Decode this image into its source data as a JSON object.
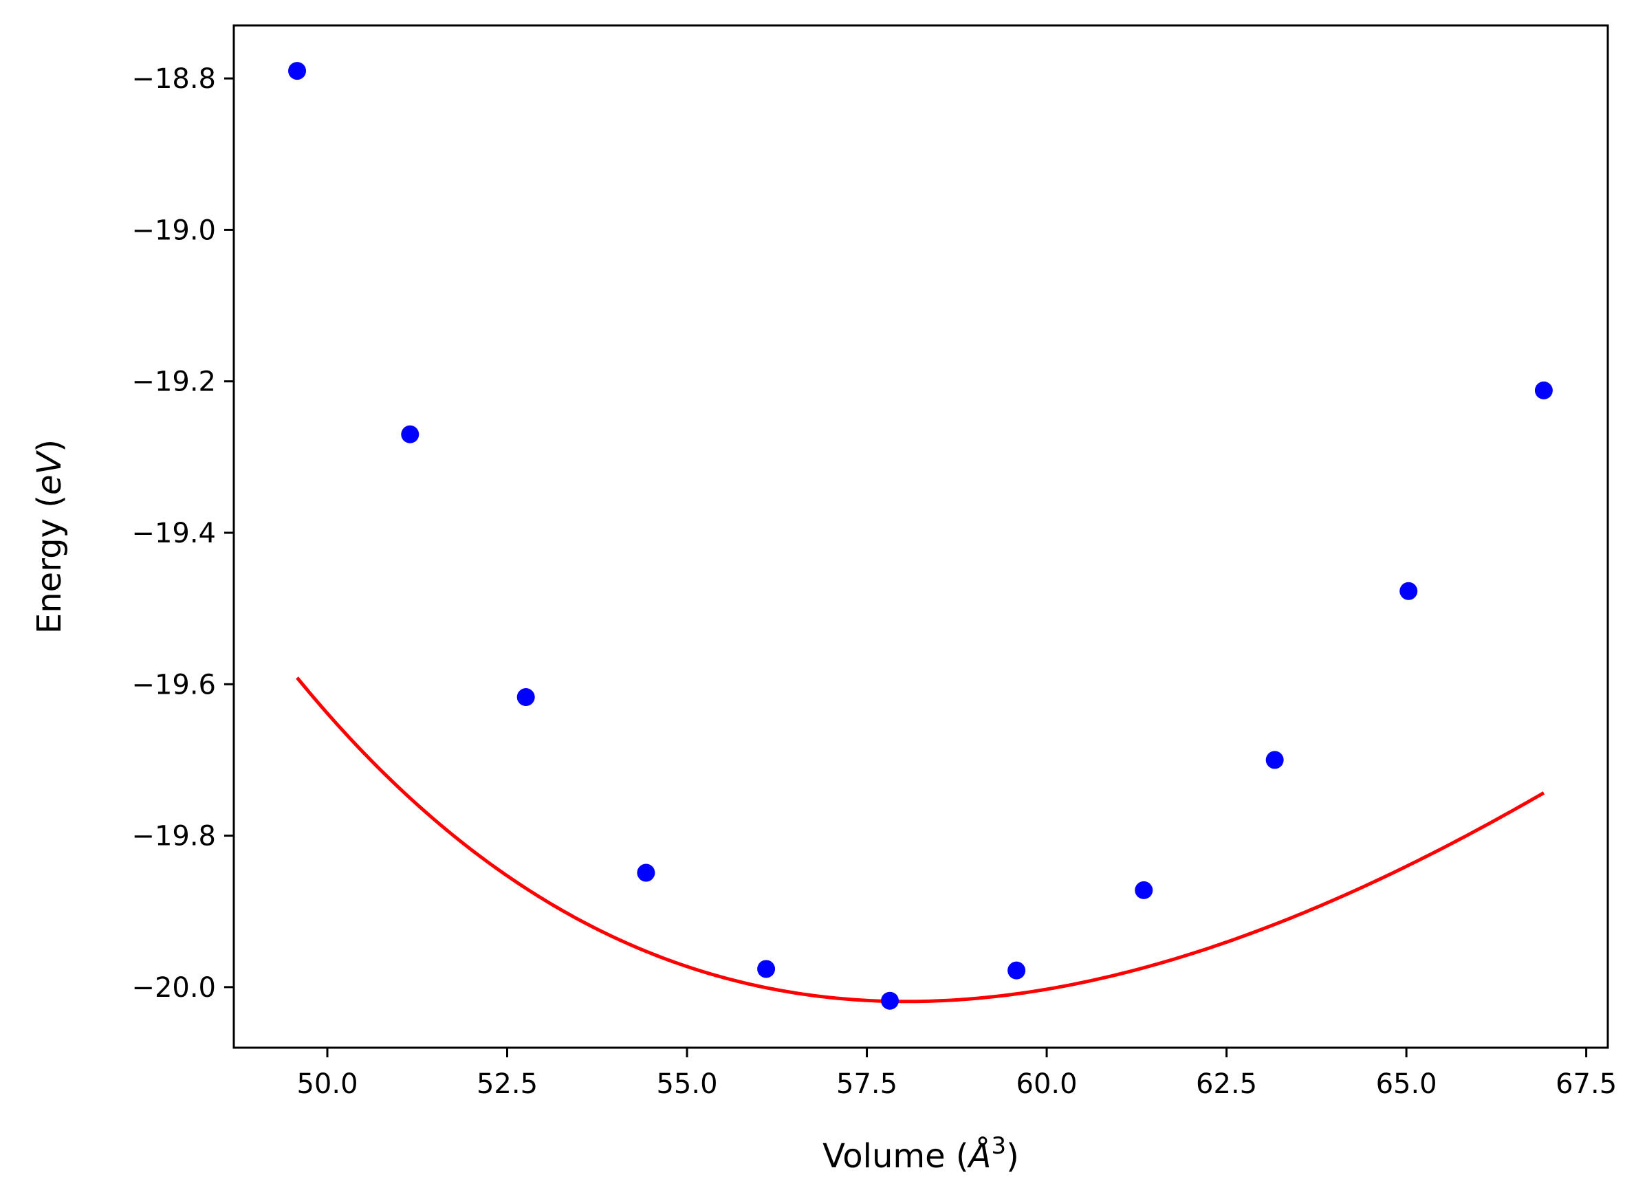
{
  "chart_data": {
    "type": "scatter",
    "xlabel": {
      "prefix": "Volume (",
      "unit": "Å",
      "exponent": "3",
      "suffix": ")"
    },
    "ylabel": {
      "prefix": "Energy (",
      "unit": "eV",
      "suffix": ")"
    },
    "xlim": [
      48.7,
      67.8
    ],
    "ylim": [
      -20.08,
      -18.73
    ],
    "xticks": [
      50.0,
      52.5,
      55.0,
      57.5,
      60.0,
      62.5,
      65.0,
      67.5
    ],
    "xtick_labels": [
      "50.0",
      "52.5",
      "55.0",
      "57.5",
      "60.0",
      "62.5",
      "65.0",
      "67.5"
    ],
    "yticks": [
      -18.8,
      -19.0,
      -19.2,
      -19.4,
      -19.6,
      -19.8,
      -20.0
    ],
    "ytick_labels": [
      "−18.8",
      "−19.0",
      "−19.2",
      "−19.4",
      "−19.6",
      "−19.8",
      "−20.0"
    ],
    "grid": false,
    "series": [
      {
        "kind": "points",
        "color": "#0000ff",
        "x": [
          49.58,
          51.15,
          52.76,
          54.43,
          56.1,
          57.82,
          59.58,
          61.35,
          63.17,
          65.03,
          66.91
        ],
        "y": [
          -18.79,
          -19.27,
          -19.617,
          -19.849,
          -19.976,
          -20.018,
          -19.978,
          -19.872,
          -19.7,
          -19.477,
          -19.212
        ]
      },
      {
        "kind": "fit",
        "color": "#ff0000",
        "model": "birch-murnaghan",
        "E0": -20.019,
        "V0": 58.05,
        "B0": 0.524,
        "B0prime": 4.3,
        "x_range": [
          49.58,
          66.91
        ]
      }
    ]
  }
}
